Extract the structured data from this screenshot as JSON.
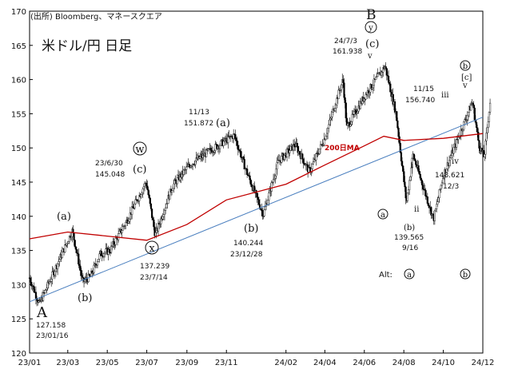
{
  "header": {
    "source": "(出所) Bloomberg、マネースクエア",
    "title": "米ドル/円 日足"
  },
  "chart_data": {
    "type": "candlestick",
    "title": "米ドル/円 日足",
    "ylim": [
      120,
      170
    ],
    "y_ticks": [
      120,
      125,
      130,
      135,
      140,
      145,
      150,
      155,
      160,
      165,
      170
    ],
    "x_ticks": [
      "23/01",
      "23/03",
      "23/05",
      "23/07",
      "23/09",
      "23/11",
      "24/02",
      "24/04",
      "24/06",
      "24/08",
      "24/10",
      "24/12"
    ],
    "price_path": [
      {
        "x": "23/01",
        "y": 131.0
      },
      {
        "x": "23/01/16",
        "y": 127.158
      },
      {
        "x": "23/03/08",
        "y": 137.9
      },
      {
        "x": "23/03/24",
        "y": 130.4
      },
      {
        "x": "23/04/05",
        "y": 131.2
      },
      {
        "x": "23/04/20",
        "y": 134.5
      },
      {
        "x": "23/05/05",
        "y": 135.0
      },
      {
        "x": "23/06/01",
        "y": 139.5
      },
      {
        "x": "23/06/30",
        "y": 145.048
      },
      {
        "x": "23/07/14",
        "y": 137.239
      },
      {
        "x": "23/08/10",
        "y": 144.5
      },
      {
        "x": "23/09/05",
        "y": 147.5
      },
      {
        "x": "23/10/05",
        "y": 149.5
      },
      {
        "x": "23/11/13",
        "y": 151.872
      },
      {
        "x": "23/12/01",
        "y": 146.8
      },
      {
        "x": "23/12/28",
        "y": 140.244
      },
      {
        "x": "24/01/20",
        "y": 148.0
      },
      {
        "x": "24/02/15",
        "y": 150.5
      },
      {
        "x": "24/03/08",
        "y": 146.5
      },
      {
        "x": "24/04/01",
        "y": 151.5
      },
      {
        "x": "24/04/29",
        "y": 160.0
      },
      {
        "x": "24/05/05",
        "y": 153.0
      },
      {
        "x": "24/06/01",
        "y": 157.5
      },
      {
        "x": "24/07/03",
        "y": 161.938
      },
      {
        "x": "24/07/20",
        "y": 155.0
      },
      {
        "x": "24/08/05",
        "y": 142.0
      },
      {
        "x": "24/08/15",
        "y": 149.0
      },
      {
        "x": "24/09/16",
        "y": 139.565
      },
      {
        "x": "24/10/01",
        "y": 146.0
      },
      {
        "x": "24/11/15",
        "y": 156.74
      },
      {
        "x": "24/11/25",
        "y": 150.5
      },
      {
        "x": "24/12/03",
        "y": 148.621
      },
      {
        "x": "24/12/13",
        "y": 157.4
      }
    ],
    "series": [
      {
        "name": "200日MA",
        "color": "#c00000",
        "points": [
          {
            "x": "23/01",
            "y": 136.7
          },
          {
            "x": "23/03",
            "y": 137.7
          },
          {
            "x": "23/05",
            "y": 137.1
          },
          {
            "x": "23/07",
            "y": 136.5
          },
          {
            "x": "23/09",
            "y": 138.8
          },
          {
            "x": "23/11",
            "y": 142.4
          },
          {
            "x": "24/02",
            "y": 144.7
          },
          {
            "x": "24/04",
            "y": 147.5
          },
          {
            "x": "24/06",
            "y": 150.3
          },
          {
            "x": "24/07",
            "y": 151.7
          },
          {
            "x": "24/08",
            "y": 151.1
          },
          {
            "x": "24/10",
            "y": 151.4
          },
          {
            "x": "24/12",
            "y": 152.1
          }
        ]
      }
    ],
    "trendline": {
      "color": "#4a7fbf",
      "from": {
        "x": "23/01",
        "y": 127.5
      },
      "to": {
        "x": "24/12",
        "y": 154.5
      }
    },
    "ma_label": "200日MA",
    "waves": [
      {
        "label": "A",
        "date": "23/01/16",
        "price": "127.158"
      },
      {
        "label": "(a)"
      },
      {
        "label": "(b)"
      },
      {
        "label": "(c)",
        "date": "23/6/30",
        "price": "145.048"
      },
      {
        "label": "w"
      },
      {
        "label": "x",
        "date": "23/7/14",
        "price": "137.239"
      },
      {
        "label": "(a)",
        "date": "11/13",
        "price": "151.872"
      },
      {
        "label": "(b)",
        "date": "23/12/28",
        "price": "140.244"
      },
      {
        "label": "B"
      },
      {
        "label": "y"
      },
      {
        "label": "(c)",
        "date": "24/7/3",
        "price": "161.938"
      },
      {
        "label": "v"
      },
      {
        "label": "a"
      },
      {
        "label": "(b)",
        "date": "9/16",
        "price": "139.565"
      },
      {
        "label": "i"
      },
      {
        "label": "ii"
      },
      {
        "label": "iii",
        "date": "11/15",
        "price": "156.740"
      },
      {
        "label": "iv",
        "date": "12/3",
        "price": "148.621"
      },
      {
        "label": "b"
      },
      {
        "label": "[c]"
      },
      {
        "label": "v"
      }
    ],
    "alt_text": "Alt:",
    "alt_labels": [
      "a",
      "b"
    ]
  }
}
